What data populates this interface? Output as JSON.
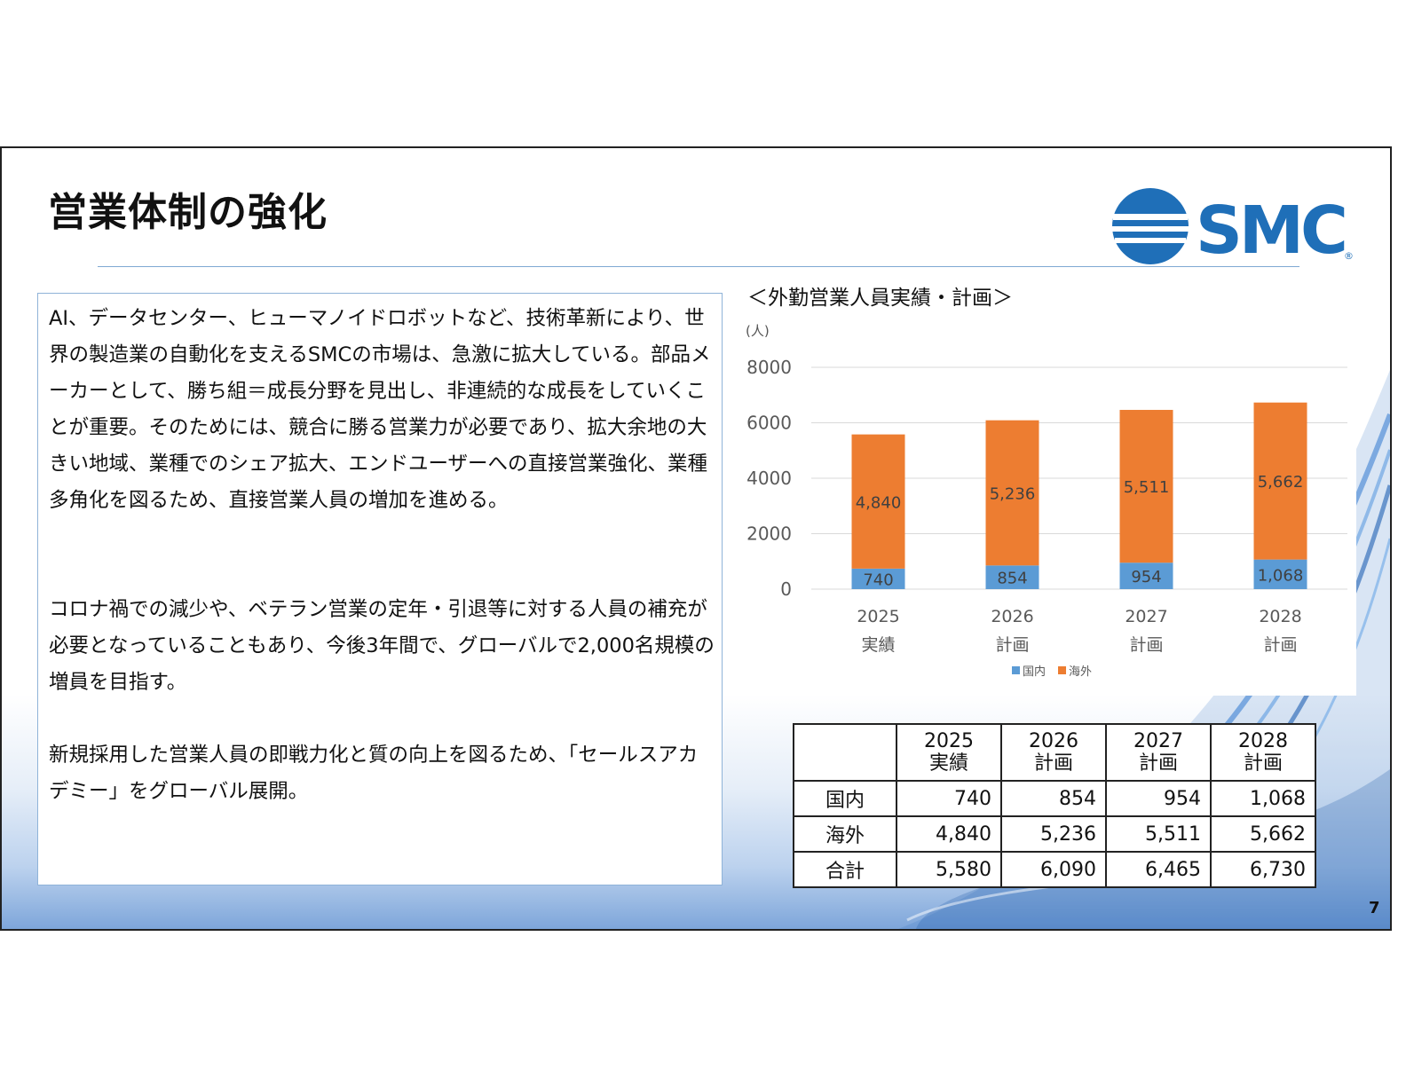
{
  "slide": {
    "title": "営業体制の強化",
    "page_number": "7",
    "logo_text": "SMC",
    "brand_color": "#1f6fb8"
  },
  "body": {
    "paragraph1": "AI、データセンター、ヒューマノイドロボットなど、技術革新により、世界の製造業の自動化を支えるSMCの市場は、急激に拡大している。部品メーカーとして、勝ち組＝成長分野を見出し、非連続的な成長をしていくことが重要。そのためには、競合に勝る営業力が必要であり、拡大余地の大きい地域、業種でのシェア拡大、エンドユーザーへの直接営業強化、業種多角化を図るため、直接営業人員の増加を進める。",
    "paragraph2": "コロナ禍での減少や、ベテラン営業の定年・引退等に対する人員の補充が必要となっていることもあり、今後3年間で、グローバルで2,000名規模の増員を目指す。",
    "paragraph3": "新規採用した営業人員の即戦力化と質の向上を図るため、「セールスアカデミー」をグローバル展開。"
  },
  "chart_data": {
    "type": "bar",
    "stacked": true,
    "title": "＜外勤営業人員実績・計画＞",
    "unit_label": "(人)",
    "categories": [
      "2025",
      "2026",
      "2027",
      "2028"
    ],
    "category_sublabels": [
      "実績",
      "計画",
      "計画",
      "計画"
    ],
    "series": [
      {
        "name": "国内",
        "values": [
          740,
          854,
          954,
          1068
        ],
        "labels": [
          "740",
          "854",
          "954",
          "1,068"
        ],
        "color": "#5b9bd5"
      },
      {
        "name": "海外",
        "values": [
          4840,
          5236,
          5511,
          5662
        ],
        "labels": [
          "4,840",
          "5,236",
          "5,511",
          "5,662"
        ],
        "color": "#ed7d31"
      }
    ],
    "ylim": [
      0,
      8000
    ],
    "yticks": [
      0,
      2000,
      4000,
      6000,
      8000
    ],
    "grid": true,
    "legend": "bottom"
  },
  "table": {
    "headers": [
      {
        "year": "2025",
        "kind": "実績"
      },
      {
        "year": "2026",
        "kind": "計画"
      },
      {
        "year": "2027",
        "kind": "計画"
      },
      {
        "year": "2028",
        "kind": "計画"
      }
    ],
    "rows": [
      {
        "label": "国内",
        "values": [
          "740",
          "854",
          "954",
          "1,068"
        ]
      },
      {
        "label": "海外",
        "values": [
          "4,840",
          "5,236",
          "5,511",
          "5,662"
        ]
      },
      {
        "label": "合計",
        "values": [
          "5,580",
          "6,090",
          "6,465",
          "6,730"
        ]
      }
    ]
  }
}
